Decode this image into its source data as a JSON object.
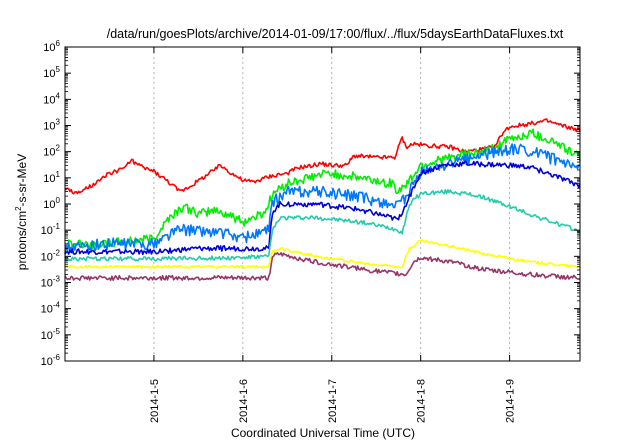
{
  "chart_data": {
    "type": "line",
    "title": "/data/run/goesPlots/archive/2014-01-09/17:00/flux/../flux/5daysEarthDataFluxes.txt",
    "xlabel": "Coordinated Universal Time (UTC)",
    "ylabel": "protons/cm2-s-sr-MeV",
    "ylabel_parts": {
      "base": "protons/cm",
      "exp": "2",
      "rest": "-s-sr-MeV"
    },
    "y_scale": "log",
    "ylim": [
      1e-06,
      1000000.0
    ],
    "xlim": [
      "2014-01-04 00:00",
      "2014-01-09 19:00"
    ],
    "x_ticks": [
      "2014-1-5",
      "2014-1-6",
      "2014-1-7",
      "2014-1-8",
      "2014-1-9"
    ],
    "y_ticks": [
      {
        "value": 1e-06,
        "base": "10",
        "exp": "-6"
      },
      {
        "value": 1e-05,
        "base": "10",
        "exp": "-5"
      },
      {
        "value": 0.0001,
        "base": "10",
        "exp": "-4"
      },
      {
        "value": 0.001,
        "base": "10",
        "exp": "-3"
      },
      {
        "value": 0.01,
        "base": "10",
        "exp": "-2"
      },
      {
        "value": 0.1,
        "base": "10",
        "exp": "-1"
      },
      {
        "value": 1.0,
        "base": "10",
        "exp": "0"
      },
      {
        "value": 10.0,
        "base": "10",
        "exp": "1"
      },
      {
        "value": 100.0,
        "base": "10",
        "exp": "2"
      },
      {
        "value": 1000.0,
        "base": "10",
        "exp": "3"
      },
      {
        "value": 10000.0,
        "base": "10",
        "exp": "4"
      },
      {
        "value": 100000.0,
        "base": "10",
        "exp": "5"
      },
      {
        "value": 1000000.0,
        "base": "10",
        "exp": "6"
      }
    ],
    "grid": "dashed vertical at x ticks",
    "legend": "none",
    "series": [
      {
        "color": "#ff0000",
        "noise": 0.08,
        "points": [
          [
            "2014-01-04 00:00",
            4
          ],
          [
            "2014-01-04 03:00",
            2.5
          ],
          [
            "2014-01-04 06:00",
            4
          ],
          [
            "2014-01-04 09:00",
            7
          ],
          [
            "2014-01-04 12:00",
            15
          ],
          [
            "2014-01-04 15:00",
            20
          ],
          [
            "2014-01-04 18:00",
            45
          ],
          [
            "2014-01-04 21:00",
            25
          ],
          [
            "2014-01-05 00:00",
            18
          ],
          [
            "2014-01-05 04:00",
            7
          ],
          [
            "2014-01-05 07:00",
            3
          ],
          [
            "2014-01-05 10:00",
            5
          ],
          [
            "2014-01-05 14:00",
            12
          ],
          [
            "2014-01-05 18:00",
            30
          ],
          [
            "2014-01-05 21:00",
            15
          ],
          [
            "2014-01-06 00:00",
            8
          ],
          [
            "2014-01-06 03:00",
            7
          ],
          [
            "2014-01-06 06:00",
            10
          ],
          [
            "2014-01-06 09:00",
            13
          ],
          [
            "2014-01-06 12:00",
            15
          ],
          [
            "2014-01-06 15:00",
            25
          ],
          [
            "2014-01-06 18:00",
            28
          ],
          [
            "2014-01-06 21:00",
            35
          ],
          [
            "2014-01-07 00:00",
            30
          ],
          [
            "2014-01-07 04:00",
            30
          ],
          [
            "2014-01-07 06:00",
            70
          ],
          [
            "2014-01-07 12:00",
            60
          ],
          [
            "2014-01-07 17:00",
            60
          ],
          [
            "2014-01-07 19:00",
            350
          ],
          [
            "2014-01-07 20:00",
            150
          ],
          [
            "2014-01-07 22:00",
            200
          ],
          [
            "2014-01-08 02:00",
            170
          ],
          [
            "2014-01-08 08:00",
            150
          ],
          [
            "2014-01-08 12:00",
            100
          ],
          [
            "2014-01-08 16:00",
            120
          ],
          [
            "2014-01-08 20:00",
            150
          ],
          [
            "2014-01-08 22:00",
            500
          ],
          [
            "2014-01-09 00:00",
            900
          ],
          [
            "2014-01-09 06:00",
            1200
          ],
          [
            "2014-01-09 10:00",
            1500
          ],
          [
            "2014-01-09 14:00",
            1000
          ],
          [
            "2014-01-09 19:00",
            650
          ]
        ]
      },
      {
        "color": "#00ee00",
        "noise": 0.18,
        "points": [
          [
            "2014-01-04 00:00",
            0.03
          ],
          [
            "2014-01-04 12:00",
            0.03
          ],
          [
            "2014-01-05 00:00",
            0.05
          ],
          [
            "2014-01-05 04:00",
            0.3
          ],
          [
            "2014-01-05 08:00",
            0.8
          ],
          [
            "2014-01-05 12:00",
            0.4
          ],
          [
            "2014-01-05 16:00",
            0.6
          ],
          [
            "2014-01-05 20:00",
            0.4
          ],
          [
            "2014-01-06 00:00",
            0.2
          ],
          [
            "2014-01-06 06:00",
            0.5
          ],
          [
            "2014-01-06 08:00",
            2.5
          ],
          [
            "2014-01-06 12:00",
            6
          ],
          [
            "2014-01-06 20:00",
            12
          ],
          [
            "2014-01-07 00:00",
            15
          ],
          [
            "2014-01-07 08:00",
            10
          ],
          [
            "2014-01-07 16:00",
            6
          ],
          [
            "2014-01-07 18:00",
            3
          ],
          [
            "2014-01-07 21:00",
            8
          ],
          [
            "2014-01-08 00:00",
            30
          ],
          [
            "2014-01-08 06:00",
            50
          ],
          [
            "2014-01-08 12:00",
            80
          ],
          [
            "2014-01-08 18:00",
            100
          ],
          [
            "2014-01-09 00:00",
            300
          ],
          [
            "2014-01-09 06:00",
            500
          ],
          [
            "2014-01-09 12:00",
            250
          ],
          [
            "2014-01-09 19:00",
            60
          ]
        ]
      },
      {
        "color": "#0077ff",
        "noise": 0.22,
        "points": [
          [
            "2014-01-04 00:00",
            0.02
          ],
          [
            "2014-01-04 12:00",
            0.03
          ],
          [
            "2014-01-05 00:00",
            0.03
          ],
          [
            "2014-01-05 06:00",
            0.1
          ],
          [
            "2014-01-05 12:00",
            0.1
          ],
          [
            "2014-01-05 18:00",
            0.08
          ],
          [
            "2014-01-06 00:00",
            0.05
          ],
          [
            "2014-01-06 07:00",
            0.1
          ],
          [
            "2014-01-06 08:00",
            1.2
          ],
          [
            "2014-01-06 12:00",
            3
          ],
          [
            "2014-01-06 20:00",
            3
          ],
          [
            "2014-01-07 06:00",
            2
          ],
          [
            "2014-01-07 16:00",
            1
          ],
          [
            "2014-01-07 18:00",
            0.8
          ],
          [
            "2014-01-07 21:00",
            3
          ],
          [
            "2014-01-08 00:00",
            15
          ],
          [
            "2014-01-08 06:00",
            30
          ],
          [
            "2014-01-08 12:00",
            50
          ],
          [
            "2014-01-08 18:00",
            80
          ],
          [
            "2014-01-09 00:00",
            120
          ],
          [
            "2014-01-09 06:00",
            110
          ],
          [
            "2014-01-09 12:00",
            50
          ],
          [
            "2014-01-09 19:00",
            18
          ]
        ]
      },
      {
        "color": "#0000dd",
        "noise": 0.1,
        "points": [
          [
            "2014-01-04 00:00",
            0.015
          ],
          [
            "2014-01-05 00:00",
            0.015
          ],
          [
            "2014-01-05 12:00",
            0.02
          ],
          [
            "2014-01-06 00:00",
            0.02
          ],
          [
            "2014-01-06 07:00",
            0.02
          ],
          [
            "2014-01-06 08:00",
            0.5
          ],
          [
            "2014-01-06 10:00",
            1.0
          ],
          [
            "2014-01-06 20:00",
            1.0
          ],
          [
            "2014-01-07 08:00",
            0.6
          ],
          [
            "2014-01-07 16:00",
            0.3
          ],
          [
            "2014-01-07 18:00",
            0.25
          ],
          [
            "2014-01-07 21:00",
            2
          ],
          [
            "2014-01-08 00:00",
            15
          ],
          [
            "2014-01-08 06:00",
            30
          ],
          [
            "2014-01-08 12:00",
            35
          ],
          [
            "2014-01-09 00:00",
            30
          ],
          [
            "2014-01-09 06:00",
            25
          ],
          [
            "2014-01-09 12:00",
            12
          ],
          [
            "2014-01-09 19:00",
            5
          ]
        ]
      },
      {
        "color": "#22ccaa",
        "noise": 0.08,
        "points": [
          [
            "2014-01-04 00:00",
            0.008
          ],
          [
            "2014-01-05 00:00",
            0.008
          ],
          [
            "2014-01-06 00:00",
            0.009
          ],
          [
            "2014-01-06 07:00",
            0.01
          ],
          [
            "2014-01-06 08:00",
            0.1
          ],
          [
            "2014-01-06 10:00",
            0.3
          ],
          [
            "2014-01-06 20:00",
            0.3
          ],
          [
            "2014-01-07 08:00",
            0.2
          ],
          [
            "2014-01-07 16:00",
            0.12
          ],
          [
            "2014-01-07 18:00",
            0.1
          ],
          [
            "2014-01-07 19:00",
            0.08
          ],
          [
            "2014-01-07 21:00",
            1.0
          ],
          [
            "2014-01-08 00:00",
            2.5
          ],
          [
            "2014-01-08 08:00",
            3
          ],
          [
            "2014-01-08 16:00",
            2
          ],
          [
            "2014-01-09 00:00",
            0.8
          ],
          [
            "2014-01-09 08:00",
            0.3
          ],
          [
            "2014-01-09 19:00",
            0.09
          ]
        ]
      },
      {
        "color": "#ffff00",
        "noise": 0.05,
        "points": [
          [
            "2014-01-04 00:00",
            0.004
          ],
          [
            "2014-01-05 00:00",
            0.004
          ],
          [
            "2014-01-06 00:00",
            0.004
          ],
          [
            "2014-01-06 07:00",
            0.004
          ],
          [
            "2014-01-06 08:00",
            0.015
          ],
          [
            "2014-01-06 10:00",
            0.02
          ],
          [
            "2014-01-06 20:00",
            0.01
          ],
          [
            "2014-01-07 10:00",
            0.005
          ],
          [
            "2014-01-07 19:00",
            0.004
          ],
          [
            "2014-01-07 21:00",
            0.02
          ],
          [
            "2014-01-08 00:00",
            0.04
          ],
          [
            "2014-01-08 08:00",
            0.025
          ],
          [
            "2014-01-08 18:00",
            0.012
          ],
          [
            "2014-01-09 06:00",
            0.006
          ],
          [
            "2014-01-09 19:00",
            0.004
          ]
        ]
      },
      {
        "color": "#993366",
        "noise": 0.09,
        "points": [
          [
            "2014-01-04 00:00",
            0.0015
          ],
          [
            "2014-01-05 00:00",
            0.0015
          ],
          [
            "2014-01-06 00:00",
            0.0015
          ],
          [
            "2014-01-06 07:00",
            0.0015
          ],
          [
            "2014-01-06 08:00",
            0.01
          ],
          [
            "2014-01-06 10:00",
            0.012
          ],
          [
            "2014-01-06 20:00",
            0.006
          ],
          [
            "2014-01-07 10:00",
            0.003
          ],
          [
            "2014-01-07 20:00",
            0.002
          ],
          [
            "2014-01-07 22:00",
            0.006
          ],
          [
            "2014-01-08 00:00",
            0.009
          ],
          [
            "2014-01-08 08:00",
            0.006
          ],
          [
            "2014-01-08 18:00",
            0.003
          ],
          [
            "2014-01-09 06:00",
            0.002
          ],
          [
            "2014-01-09 19:00",
            0.0015
          ]
        ]
      }
    ]
  }
}
